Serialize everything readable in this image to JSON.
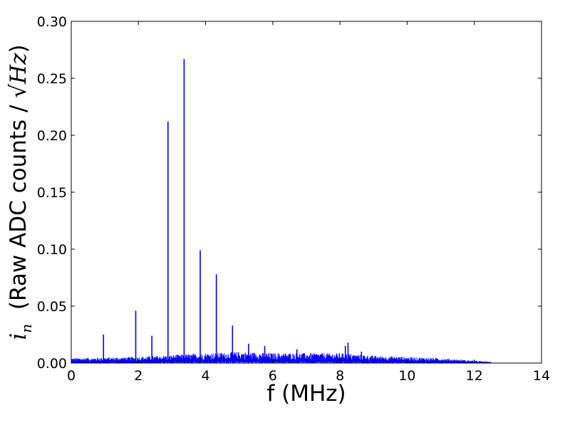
{
  "chart_data": {
    "type": "line",
    "title": "",
    "xlabel": "f (MHz)",
    "ylabel_math": "i",
    "ylabel_math_sub": "n",
    "ylabel_text": "(Raw ADC counts / ",
    "ylabel_sqrt": "√",
    "ylabel_unit": "Hz",
    "ylabel_close": ")",
    "xlim": [
      0,
      14
    ],
    "ylim": [
      0,
      0.3
    ],
    "xticks": [
      0,
      2,
      4,
      6,
      8,
      10,
      12,
      14
    ],
    "xtick_labels": [
      "0",
      "2",
      "4",
      "6",
      "8",
      "10",
      "12",
      "14"
    ],
    "yticks": [
      0,
      0.05,
      0.1,
      0.15,
      0.2,
      0.25,
      0.3
    ],
    "ytick_labels": [
      "0.00",
      "0.05",
      "0.10",
      "0.15",
      "0.20",
      "0.25",
      "0.30"
    ],
    "grid": false,
    "legend": "none",
    "colors": {
      "line": "#0000ff",
      "axes": "#000000",
      "background": "#ffffff"
    },
    "noise_floor": {
      "x_start": 0.0,
      "x_end": 12.5,
      "envelope": [
        [
          0.0,
          0.004
        ],
        [
          2.0,
          0.005
        ],
        [
          4.0,
          0.008
        ],
        [
          5.0,
          0.009
        ],
        [
          6.0,
          0.008
        ],
        [
          8.0,
          0.008
        ],
        [
          9.0,
          0.006
        ],
        [
          10.0,
          0.005
        ],
        [
          11.0,
          0.004
        ],
        [
          12.0,
          0.002
        ],
        [
          12.5,
          0.001
        ]
      ]
    },
    "peaks": [
      {
        "x": 0.96,
        "y": 0.025
      },
      {
        "x": 1.92,
        "y": 0.046
      },
      {
        "x": 2.4,
        "y": 0.024
      },
      {
        "x": 2.88,
        "y": 0.212
      },
      {
        "x": 3.36,
        "y": 0.267
      },
      {
        "x": 3.84,
        "y": 0.099
      },
      {
        "x": 4.32,
        "y": 0.078
      },
      {
        "x": 4.8,
        "y": 0.033
      },
      {
        "x": 5.28,
        "y": 0.017
      },
      {
        "x": 5.76,
        "y": 0.015
      },
      {
        "x": 6.72,
        "y": 0.012
      },
      {
        "x": 8.16,
        "y": 0.015
      },
      {
        "x": 8.24,
        "y": 0.018
      },
      {
        "x": 8.64,
        "y": 0.01
      }
    ]
  }
}
